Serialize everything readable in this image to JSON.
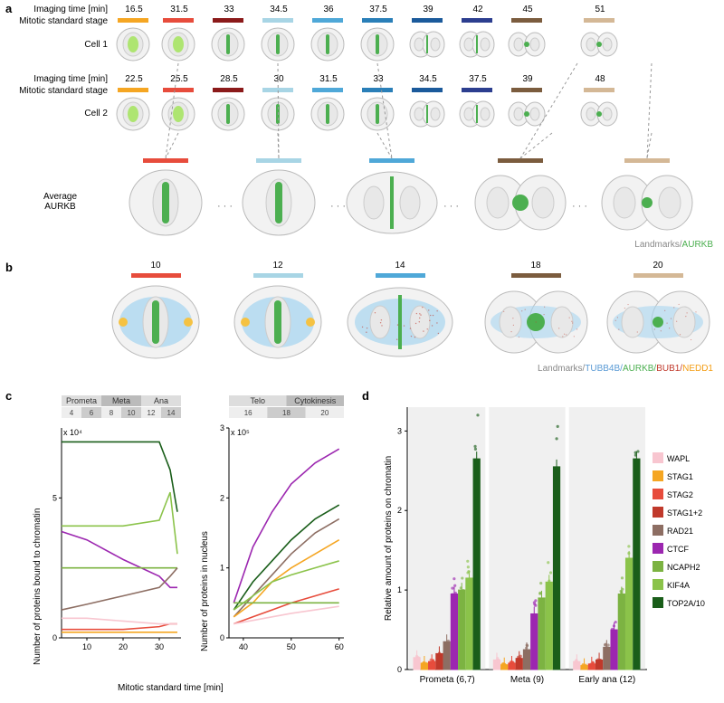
{
  "panel_a": {
    "label": "a",
    "rows": {
      "imaging_time_label": "Imaging time [min]",
      "mitotic_stage_label": "Mitotic standard stage",
      "cell1_label": "Cell 1",
      "cell2_label": "Cell 2",
      "avg_label": "Average\nAURKB"
    },
    "cell1_times": [
      "16.5",
      "31.5",
      "33",
      "34.5",
      "36",
      "37.5",
      "39",
      "42",
      "45",
      "51"
    ],
    "cell2_times": [
      "22.5",
      "25.5",
      "28.5",
      "30",
      "31.5",
      "33",
      "34.5",
      "37.5",
      "39",
      "48"
    ],
    "stage_colors": [
      "#f5a623",
      "#e74c3c",
      "#8b1a1a",
      "#a8d5e5",
      "#4fa8d8",
      "#2a7fb8",
      "#1b5a9b",
      "#2c3e8f",
      "#7b5c3e",
      "#d4b896"
    ],
    "avg_stage_colors": [
      "#e74c3c",
      "#a8d5e5",
      "#4fa8d8",
      "#7b5c3e",
      "#d4b896"
    ],
    "legend": {
      "landmarks": "Landmarks/",
      "aurkb": "AURKB",
      "aurkb_color": "#4caf50"
    }
  },
  "panel_b": {
    "label": "b",
    "stage_numbers": [
      "10",
      "12",
      "14",
      "18",
      "20"
    ],
    "stage_colors": [
      "#e74c3c",
      "#a8d5e5",
      "#4fa8d8",
      "#7b5c3e",
      "#d4b896"
    ],
    "legend": {
      "landmarks": "Landmarks/",
      "tubb4b": "TUBB4B/",
      "tubb4b_color": "#5b9bd5",
      "aurkb": "AURKB/",
      "aurkb_color": "#4caf50",
      "bub1": "BUB1/",
      "bub1_color": "#c0392b",
      "nedd1": "NEDD1",
      "nedd1_color": "#f39c12"
    }
  },
  "panel_c": {
    "label": "c",
    "left_chart": {
      "ylabel": "Number of proteins bound to chromatin",
      "xlabel": "Mitotic standard time [min]",
      "phases": [
        "Prometa",
        "Meta",
        "Ana"
      ],
      "phase_nums": [
        "4",
        "6",
        "8",
        "10",
        "12",
        "14"
      ],
      "y_exp": "x 10⁴",
      "y_ticks": [
        "0",
        "5"
      ],
      "x_ticks": [
        "10",
        "20",
        "30"
      ],
      "ylim": [
        0,
        7.5
      ],
      "series": [
        {
          "color": "#1a5e1a",
          "points": [
            [
              3,
              7.0
            ],
            [
              10,
              7.0
            ],
            [
              20,
              7.0
            ],
            [
              30,
              7.0
            ],
            [
              33,
              6.0
            ],
            [
              35,
              4.5
            ]
          ]
        },
        {
          "color": "#8bc34a",
          "points": [
            [
              3,
              4.0
            ],
            [
              10,
              4.0
            ],
            [
              20,
              4.0
            ],
            [
              30,
              4.2
            ],
            [
              33,
              5.2
            ],
            [
              35,
              3.0
            ]
          ]
        },
        {
          "color": "#9c27b0",
          "points": [
            [
              3,
              3.8
            ],
            [
              10,
              3.5
            ],
            [
              20,
              2.8
            ],
            [
              30,
              2.2
            ],
            [
              33,
              1.8
            ],
            [
              35,
              1.8
            ]
          ]
        },
        {
          "color": "#7cb342",
          "points": [
            [
              3,
              2.5
            ],
            [
              10,
              2.5
            ],
            [
              20,
              2.5
            ],
            [
              30,
              2.5
            ],
            [
              33,
              2.5
            ],
            [
              35,
              2.5
            ]
          ]
        },
        {
          "color": "#8d6e63",
          "points": [
            [
              3,
              1.0
            ],
            [
              10,
              1.2
            ],
            [
              20,
              1.5
            ],
            [
              30,
              1.8
            ],
            [
              33,
              2.2
            ],
            [
              35,
              2.5
            ]
          ]
        },
        {
          "color": "#e74c3c",
          "points": [
            [
              3,
              0.3
            ],
            [
              10,
              0.3
            ],
            [
              20,
              0.3
            ],
            [
              30,
              0.4
            ],
            [
              33,
              0.5
            ],
            [
              35,
              0.5
            ]
          ]
        },
        {
          "color": "#f5a623",
          "points": [
            [
              3,
              0.2
            ],
            [
              10,
              0.2
            ],
            [
              20,
              0.2
            ],
            [
              30,
              0.2
            ],
            [
              33,
              0.2
            ],
            [
              35,
              0.2
            ]
          ]
        },
        {
          "color": "#f8c6d0",
          "points": [
            [
              3,
              0.7
            ],
            [
              10,
              0.7
            ],
            [
              20,
              0.6
            ],
            [
              30,
              0.5
            ],
            [
              33,
              0.5
            ],
            [
              35,
              0.5
            ]
          ]
        }
      ]
    },
    "right_chart": {
      "ylabel": "Number of proteins in nucleus",
      "phases": [
        "Telo",
        "Cytokinesis"
      ],
      "phase_nums": [
        "16",
        "18",
        "20"
      ],
      "y_exp": "x 10⁵",
      "y_ticks": [
        "0",
        "1",
        "2",
        "3"
      ],
      "x_ticks": [
        "40",
        "50",
        "60"
      ],
      "ylim": [
        0,
        3
      ],
      "series": [
        {
          "color": "#9c27b0",
          "points": [
            [
              38,
              0.5
            ],
            [
              42,
              1.3
            ],
            [
              46,
              1.8
            ],
            [
              50,
              2.2
            ],
            [
              55,
              2.5
            ],
            [
              60,
              2.7
            ]
          ]
        },
        {
          "color": "#1a5e1a",
          "points": [
            [
              38,
              0.4
            ],
            [
              42,
              0.8
            ],
            [
              46,
              1.1
            ],
            [
              50,
              1.4
            ],
            [
              55,
              1.7
            ],
            [
              60,
              1.9
            ]
          ]
        },
        {
          "color": "#8d6e63",
          "points": [
            [
              38,
              0.3
            ],
            [
              42,
              0.6
            ],
            [
              46,
              0.9
            ],
            [
              50,
              1.2
            ],
            [
              55,
              1.5
            ],
            [
              60,
              1.7
            ]
          ]
        },
        {
          "color": "#f5a623",
          "points": [
            [
              38,
              0.3
            ],
            [
              42,
              0.5
            ],
            [
              46,
              0.8
            ],
            [
              50,
              1.0
            ],
            [
              55,
              1.2
            ],
            [
              60,
              1.4
            ]
          ]
        },
        {
          "color": "#8bc34a",
          "points": [
            [
              38,
              0.4
            ],
            [
              42,
              0.6
            ],
            [
              46,
              0.8
            ],
            [
              50,
              0.9
            ],
            [
              55,
              1.0
            ],
            [
              60,
              1.1
            ]
          ]
        },
        {
          "color": "#e74c3c",
          "points": [
            [
              38,
              0.2
            ],
            [
              42,
              0.3
            ],
            [
              46,
              0.4
            ],
            [
              50,
              0.5
            ],
            [
              55,
              0.6
            ],
            [
              60,
              0.7
            ]
          ]
        },
        {
          "color": "#7cb342",
          "points": [
            [
              38,
              0.5
            ],
            [
              42,
              0.5
            ],
            [
              46,
              0.5
            ],
            [
              50,
              0.5
            ],
            [
              55,
              0.5
            ],
            [
              60,
              0.5
            ]
          ]
        },
        {
          "color": "#f8c6d0",
          "points": [
            [
              38,
              0.2
            ],
            [
              42,
              0.25
            ],
            [
              46,
              0.3
            ],
            [
              50,
              0.35
            ],
            [
              55,
              0.4
            ],
            [
              60,
              0.45
            ]
          ]
        }
      ]
    }
  },
  "panel_d": {
    "label": "d",
    "ylabel": "Relative amount of proteins on chromatin",
    "groups": [
      "Prometa (6,7)",
      "Meta (9)",
      "Early ana (12)"
    ],
    "y_ticks": [
      "0",
      "1",
      "2",
      "3"
    ],
    "legend_items": [
      {
        "label": "WAPL",
        "color": "#f8c6d0"
      },
      {
        "label": "STAG1",
        "color": "#f5a623"
      },
      {
        "label": "STAG2",
        "color": "#e74c3c"
      },
      {
        "label": "STAG1+2",
        "color": "#c0392b"
      },
      {
        "label": "RAD21",
        "color": "#8d6e63"
      },
      {
        "label": "CTCF",
        "color": "#9c27b0"
      },
      {
        "label": "NCAPH2",
        "color": "#7cb342"
      },
      {
        "label": "KIF4A",
        "color": "#8bc34a"
      },
      {
        "label": "TOP2A/10",
        "color": "#1a5e1a"
      }
    ],
    "bars": {
      "Prometa": [
        0.15,
        0.08,
        0.1,
        0.2,
        0.35,
        0.95,
        1.0,
        1.15,
        2.65
      ],
      "Meta": [
        0.12,
        0.06,
        0.08,
        0.14,
        0.25,
        0.7,
        0.9,
        1.1,
        2.55
      ],
      "Early_ana": [
        0.1,
        0.05,
        0.07,
        0.12,
        0.28,
        0.5,
        0.95,
        1.4,
        2.65
      ]
    }
  }
}
